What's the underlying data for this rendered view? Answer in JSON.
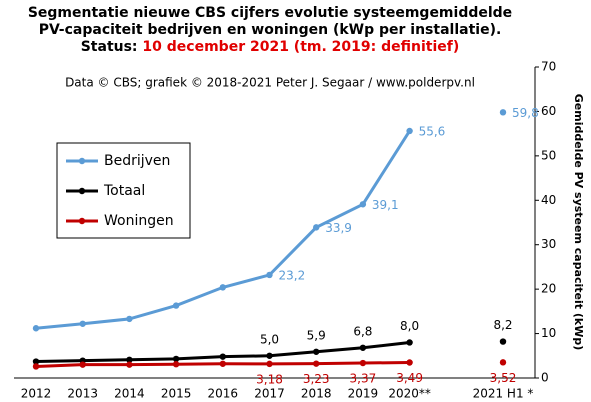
{
  "chart_data": {
    "type": "line",
    "title": [
      "Segmentatie nieuwe CBS cijfers evolutie systeemgemiddelde",
      "PV-capaciteit bedrijven en woningen (kWp per installatie)."
    ],
    "status_label": "Status:",
    "status": "10 december 2021 (tm. 2019: definitief)",
    "subtitle": "Data © CBS; grafiek © 2018-2021 Peter J. Segaar / www.polderpv.nl",
    "y_label": "Gemiddelde PV systeem capaciteit (kWp)",
    "categories": [
      "2012",
      "2013",
      "2014",
      "2015",
      "2016",
      "2017",
      "2018",
      "2019",
      "2020**",
      null,
      "2021 H1 *"
    ],
    "series": [
      {
        "name": "Bedrijven",
        "color": "#5b9bd5",
        "label_pos": "right",
        "values": [
          11.2,
          12.2,
          13.3,
          16.3,
          20.4,
          23.2,
          33.9,
          39.1,
          55.6,
          null,
          59.8
        ],
        "value_labels": [
          null,
          null,
          null,
          null,
          null,
          "23,2",
          "33,9",
          "39,1",
          "55,6",
          null,
          "59,8"
        ]
      },
      {
        "name": "Totaal",
        "color": "#000000",
        "label_pos": "above",
        "values": [
          3.7,
          3.9,
          4.1,
          4.3,
          4.8,
          5.0,
          5.9,
          6.8,
          8.0,
          null,
          8.2
        ],
        "value_labels": [
          null,
          null,
          null,
          null,
          null,
          "5,0",
          "5,9",
          "6,8",
          "8,0",
          null,
          "8,2"
        ]
      },
      {
        "name": "Woningen",
        "color": "#c00000",
        "label_pos": "below",
        "values": [
          2.6,
          3.0,
          3.0,
          3.1,
          3.2,
          3.18,
          3.23,
          3.37,
          3.49,
          null,
          3.52
        ],
        "value_labels": [
          null,
          null,
          null,
          null,
          null,
          "3,18",
          "3,23",
          "3,37",
          "3,49",
          null,
          "3,52"
        ]
      }
    ],
    "ylim": [
      0,
      70
    ],
    "yticks": [
      0,
      10,
      20,
      30,
      40,
      50,
      60,
      70
    ],
    "y_axis_side": "right",
    "grid": false
  }
}
